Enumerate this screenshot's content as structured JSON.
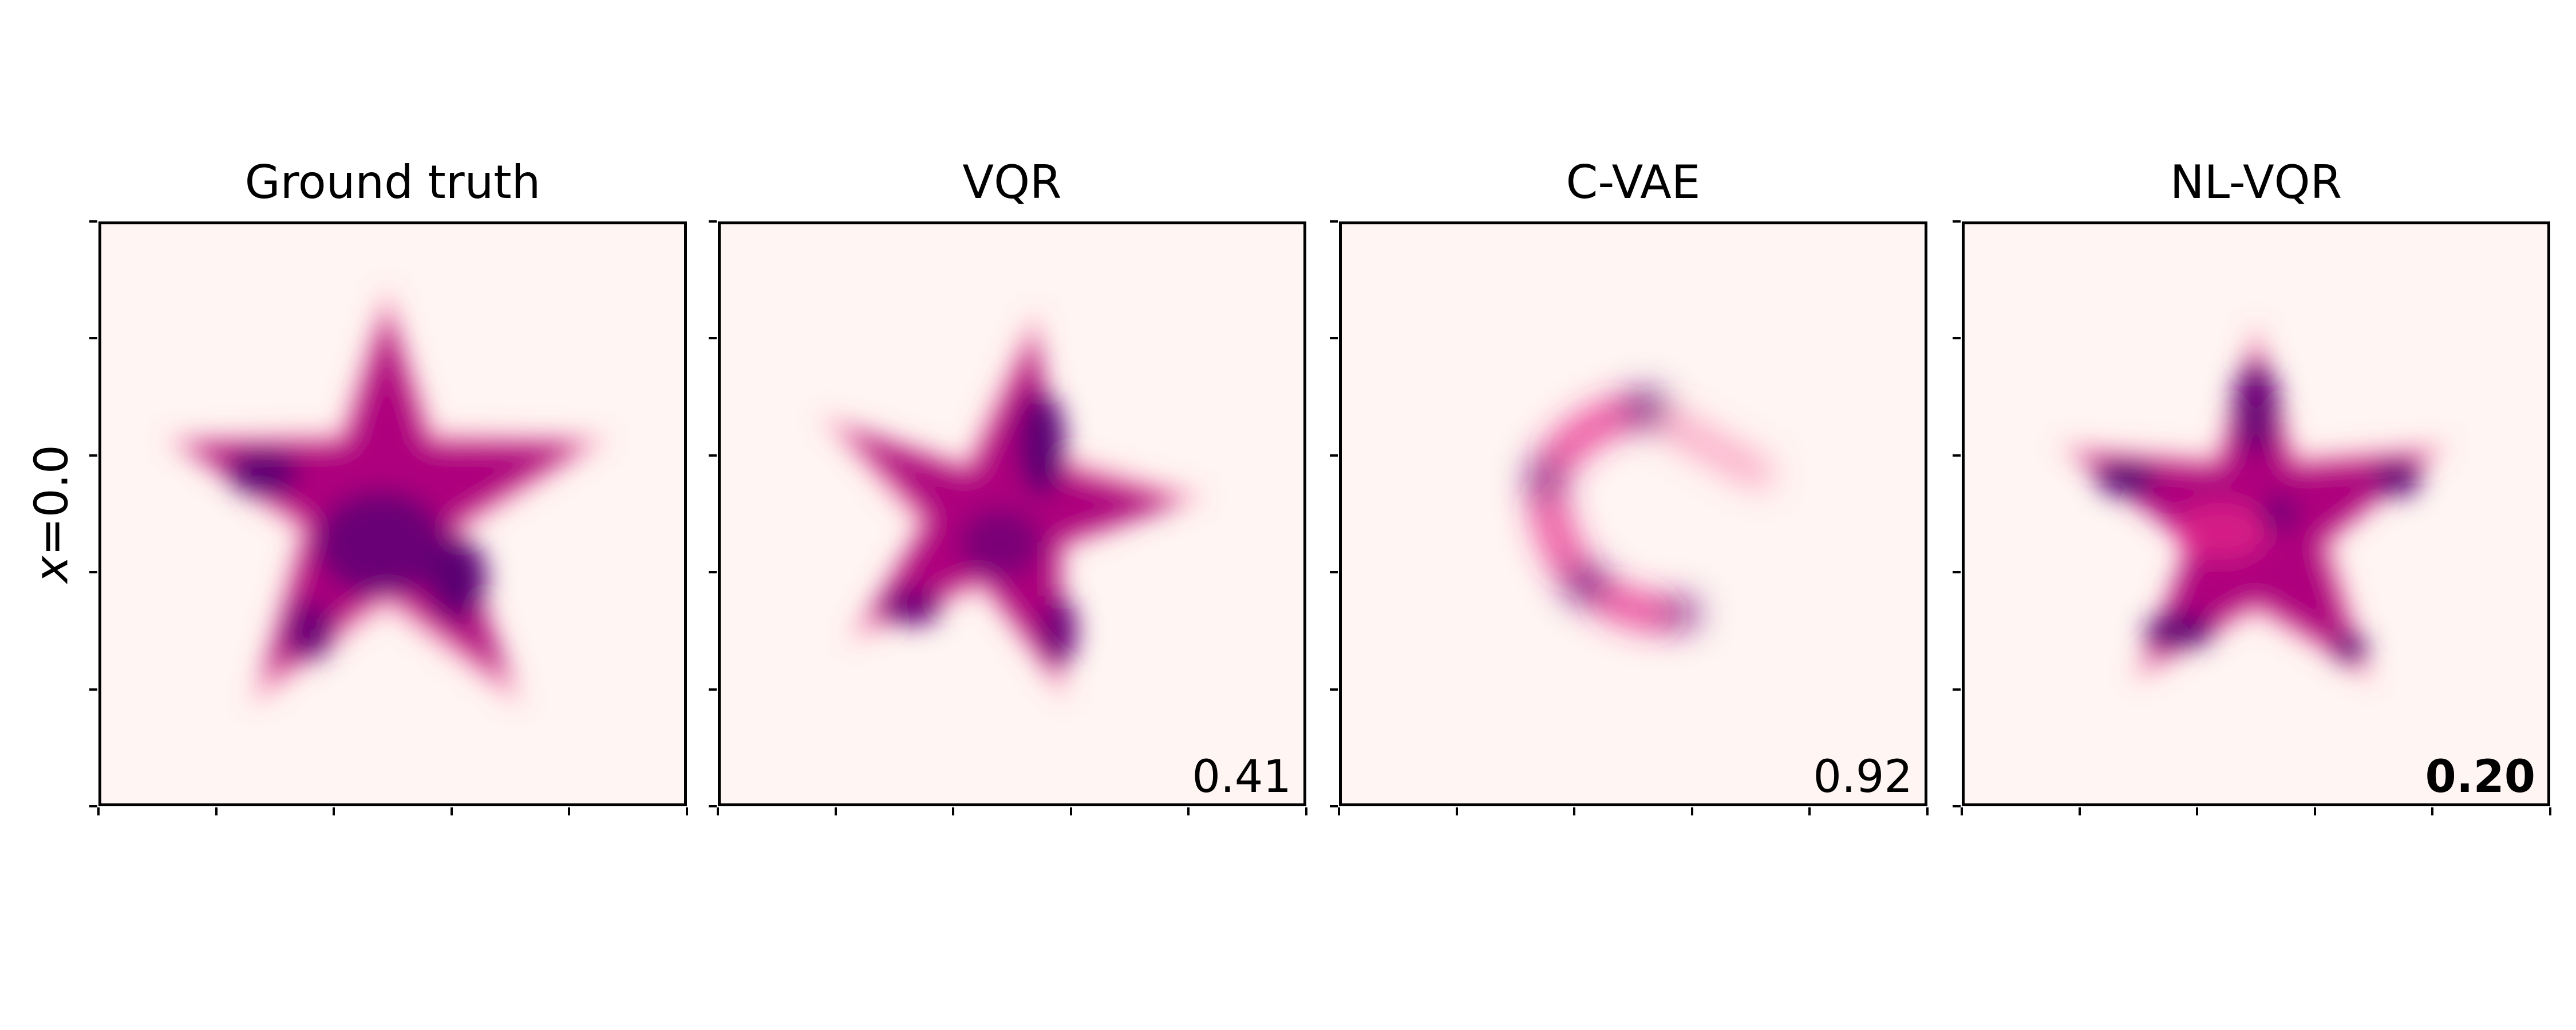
{
  "chart_data": {
    "type": "heatmap",
    "description_kind": "2D conditional density panels",
    "row_label_var": "x",
    "row_label_eq": "=0.0",
    "colormap_light": "#fff5f2",
    "colormap_dark": "#49006a",
    "panels": [
      {
        "title": "Ground truth",
        "score": null,
        "bold": false
      },
      {
        "title": "VQR",
        "score": "0.41",
        "bold": false
      },
      {
        "title": "C-VAE",
        "score": "0.92",
        "bold": false
      },
      {
        "title": "NL-VQR",
        "score": "0.20",
        "bold": true
      }
    ]
  }
}
